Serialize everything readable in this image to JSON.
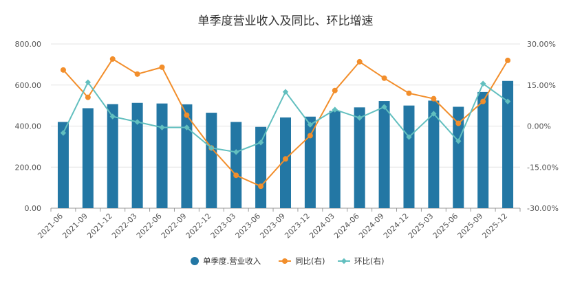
{
  "chart_data": {
    "type": "bar",
    "title": "单季度营业收入及同比、环比增速",
    "categories": [
      "2021-06",
      "2021-09",
      "2021-12",
      "2022-03",
      "2022-06",
      "2022-09",
      "2022-12",
      "2023-03",
      "2023-06",
      "2023-09",
      "2023-12",
      "2024-03",
      "2024-06",
      "2024-09",
      "2024-12",
      "2025-03",
      "2025-06",
      "2025-09",
      "2025-12"
    ],
    "left_axis": {
      "ylim": [
        0,
        800
      ],
      "ticks": [
        "0.00",
        "200.00",
        "400.00",
        "600.00",
        "800.00"
      ]
    },
    "right_axis": {
      "ylim": [
        -30,
        30
      ],
      "ticks": [
        "-30.00%",
        "-15.00%",
        "0.00%",
        "15.00%",
        "30.00%"
      ]
    },
    "series": [
      {
        "name": "单季度.营业收入",
        "type": "bar",
        "axis": "left",
        "color": "#2377a4",
        "values": [
          420,
          487,
          507,
          513,
          510,
          506,
          465,
          420,
          396,
          442,
          446,
          474,
          491,
          522,
          500,
          524,
          494,
          566,
          620
        ]
      },
      {
        "name": "同比(右)",
        "type": "line",
        "axis": "right",
        "color": "#f28e2b",
        "marker": "circle",
        "values": [
          20.5,
          10.5,
          24.5,
          19.0,
          21.5,
          4.0,
          -8.0,
          -18.0,
          -22.0,
          -12.0,
          -3.5,
          13.0,
          23.5,
          17.5,
          12.0,
          10.0,
          1.0,
          9.0,
          24.0
        ]
      },
      {
        "name": "环比(右)",
        "type": "line",
        "axis": "right",
        "color": "#62bfbf",
        "marker": "diamond",
        "values": [
          -2.5,
          16.0,
          3.5,
          1.5,
          -0.5,
          -0.5,
          -8.0,
          -9.5,
          -6.0,
          12.5,
          0.5,
          6.0,
          3.0,
          7.0,
          -4.0,
          4.5,
          -5.5,
          15.5,
          9.0
        ]
      }
    ],
    "legend": {
      "position": "bottom"
    },
    "grid": true
  }
}
